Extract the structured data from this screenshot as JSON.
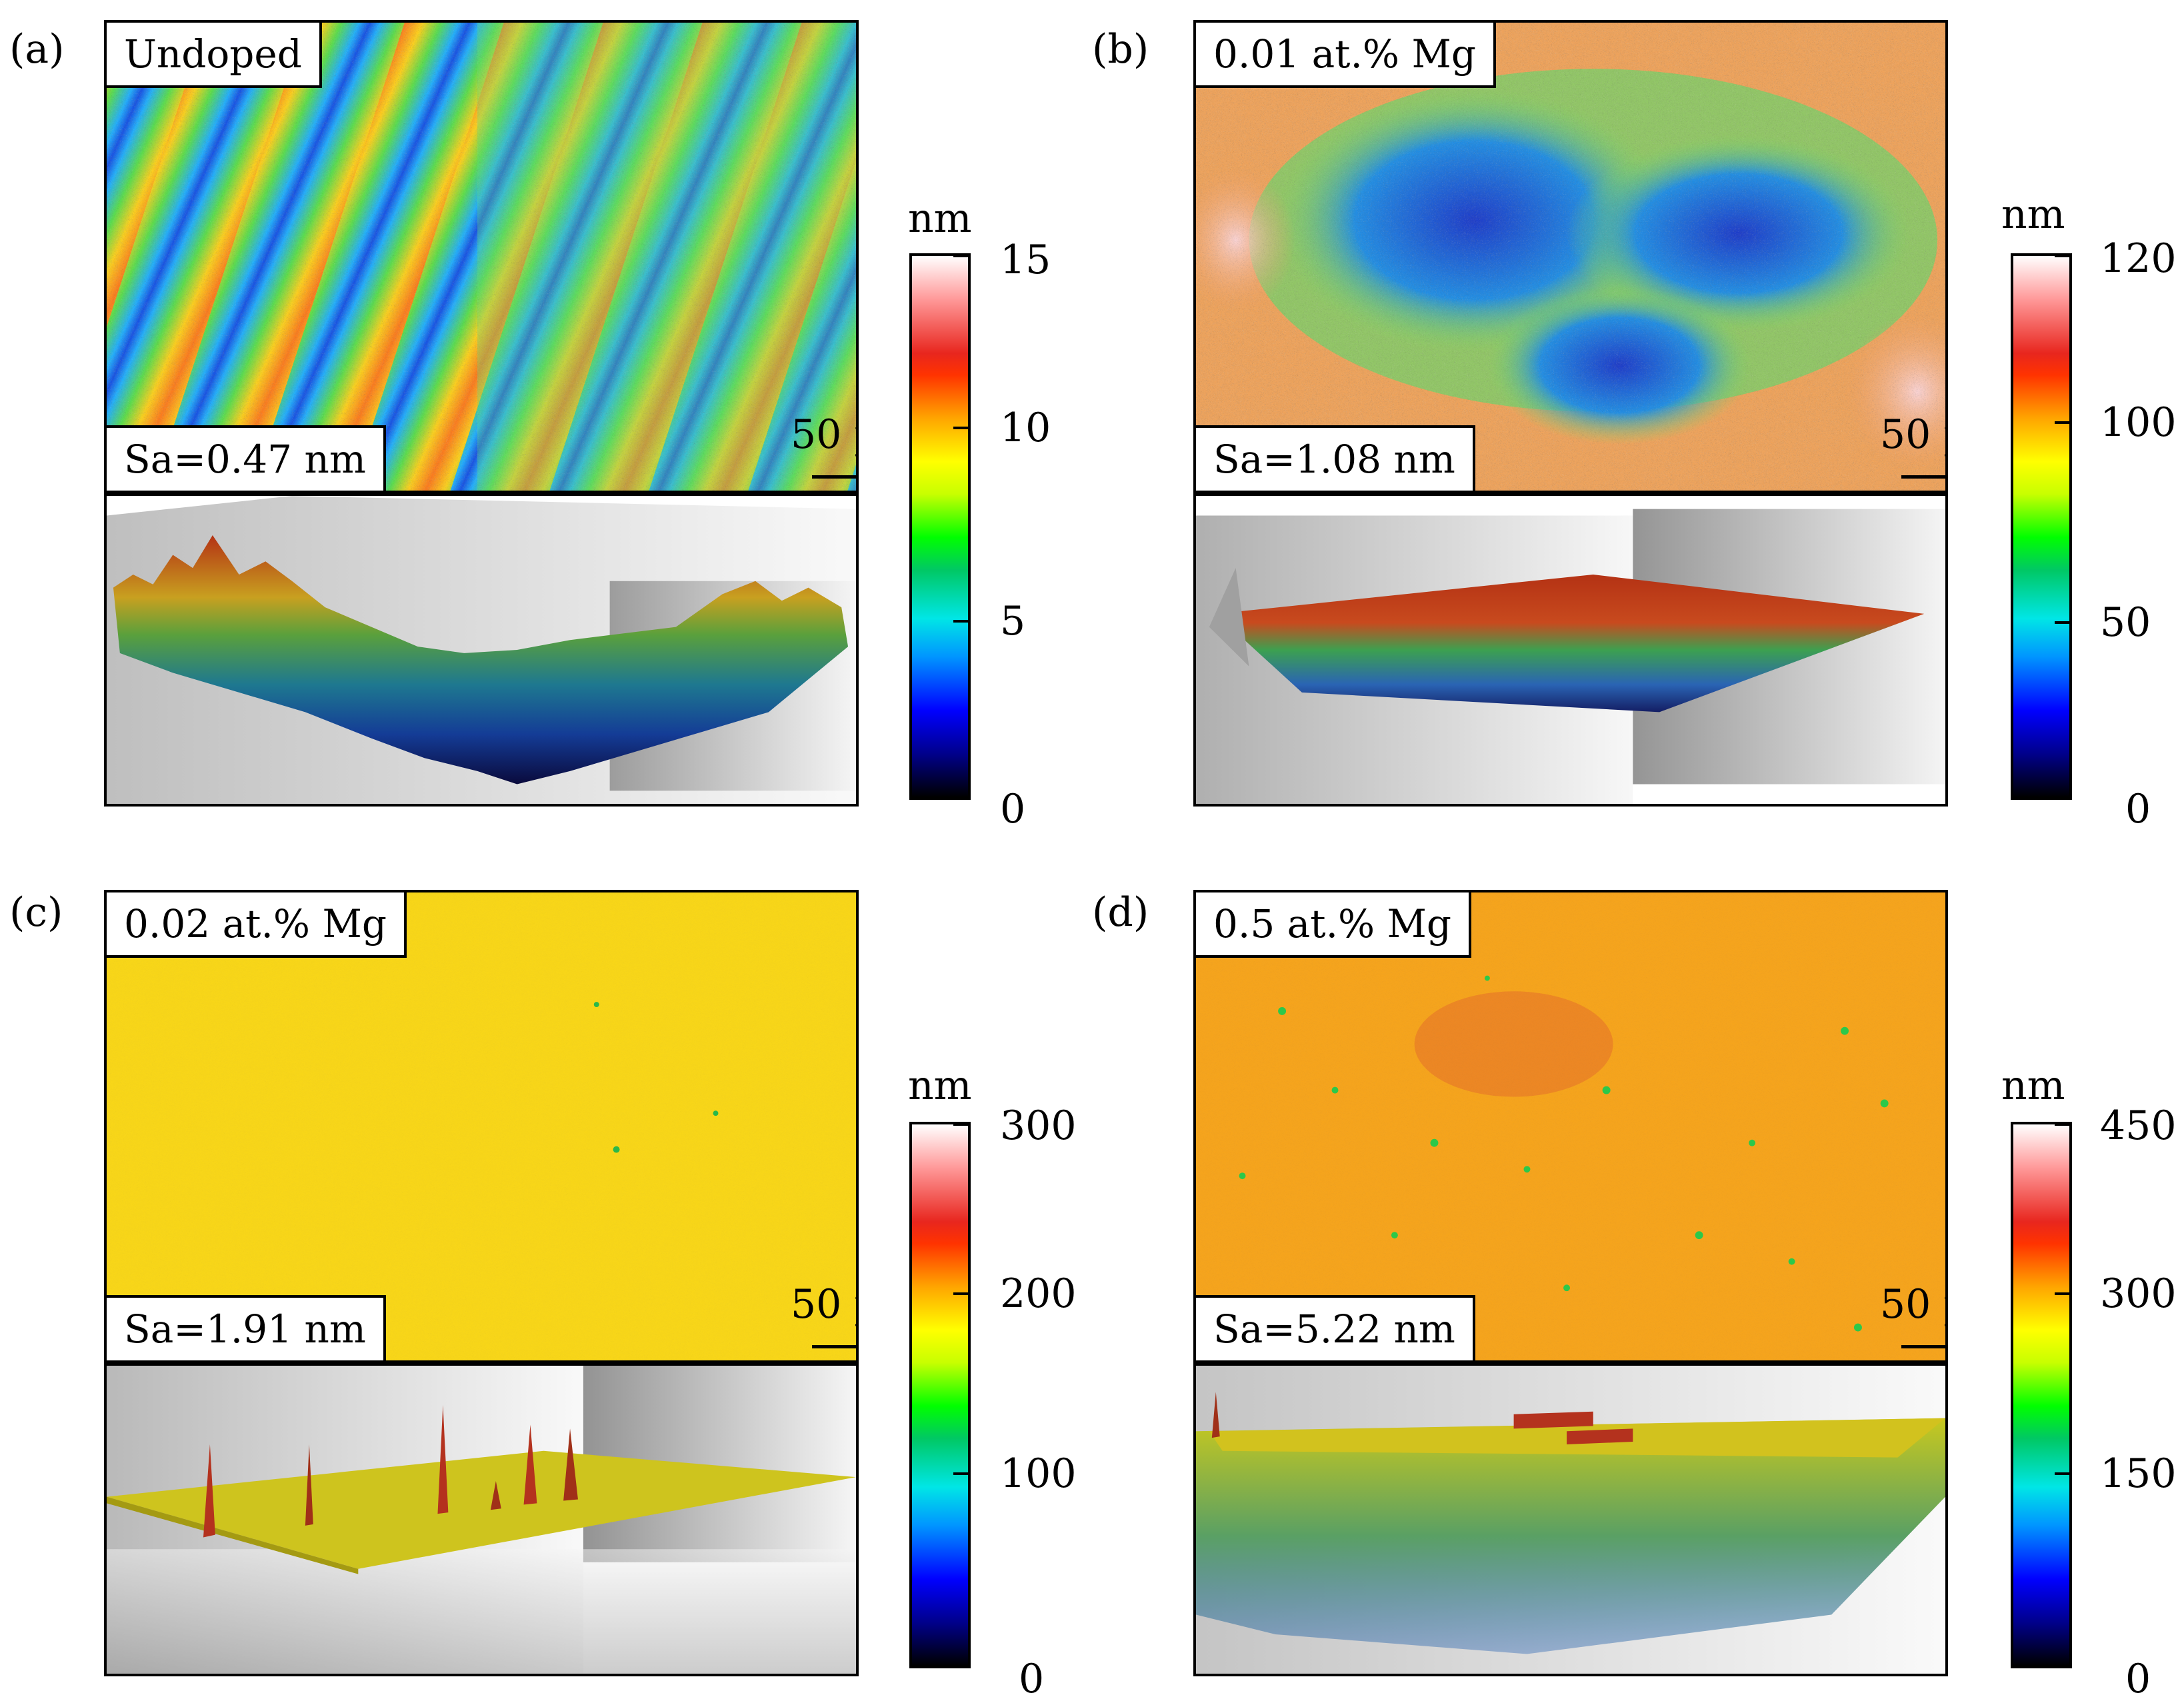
{
  "panels": [
    {
      "label": "(a)",
      "title": "Undoped",
      "sa": "Sa=0.47 nm",
      "scale": "50 µm",
      "colorbar": {
        "unit": "nm",
        "ticks": [
          "15",
          "10",
          "5",
          "0"
        ],
        "max_nm": 15
      }
    },
    {
      "label": "(b)",
      "title": "0.01 at.% Mg",
      "sa": "Sa=1.08 nm",
      "scale": "50 µm",
      "colorbar": {
        "unit": "nm",
        "ticks": [
          "120",
          "100",
          "50",
          "0"
        ],
        "max_nm": 120
      }
    },
    {
      "label": "(c)",
      "title": "0.02 at.% Mg",
      "sa": "Sa=1.91 nm",
      "scale": "50 µm",
      "colorbar": {
        "unit": "nm",
        "ticks": [
          "300",
          "200",
          "100",
          "0"
        ],
        "max_nm": 300
      }
    },
    {
      "label": "(d)",
      "title": "0.5 at.% Mg",
      "sa": "Sa=5.22 nm",
      "scale": "50 µm",
      "colorbar": {
        "unit": "nm",
        "ticks": [
          "450",
          "300",
          "150",
          "0"
        ],
        "max_nm": 450
      }
    }
  ]
}
